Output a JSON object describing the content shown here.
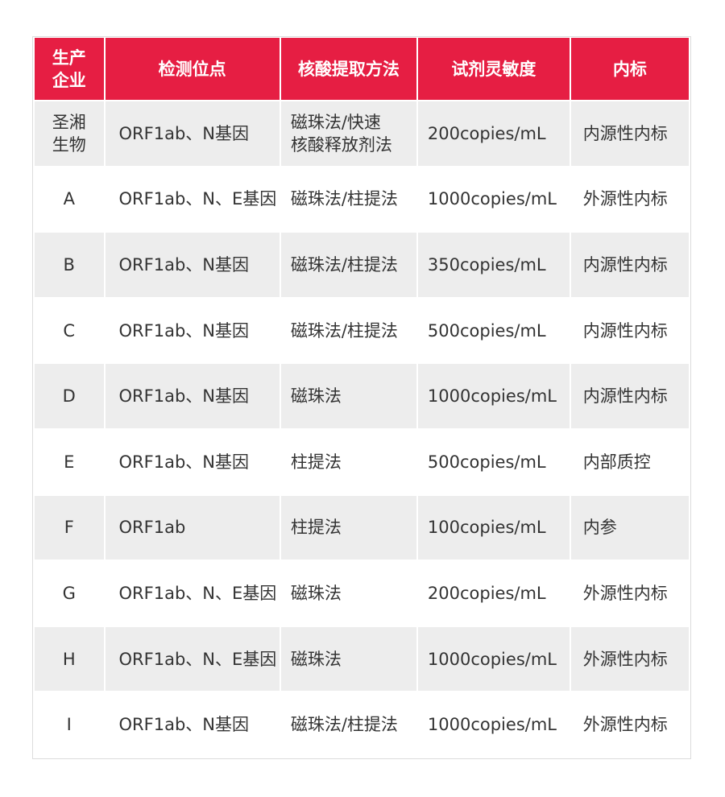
{
  "colors": {
    "header_bg": "#e61e43",
    "row_alt_bg": "#ededed"
  },
  "headers": [
    "生产\n企业",
    "检测位点",
    "核酸提取方法",
    "试剂灵敏度",
    "内标"
  ],
  "rows": [
    [
      "圣湘\n生物",
      "ORF1ab、N基因",
      "磁珠法/快速\n核酸释放剂法",
      "200copies/mL",
      "内源性内标"
    ],
    [
      "A",
      "ORF1ab、N、E基因",
      "磁珠法/柱提法",
      "1000copies/mL",
      "外源性内标"
    ],
    [
      "B",
      "ORF1ab、N基因",
      "磁珠法/柱提法",
      "350copies/mL",
      "内源性内标"
    ],
    [
      "C",
      "ORF1ab、N基因",
      "磁珠法/柱提法",
      "500copies/mL",
      "内源性内标"
    ],
    [
      "D",
      "ORF1ab、N基因",
      "磁珠法",
      "1000copies/mL",
      "内源性内标"
    ],
    [
      "E",
      "ORF1ab、N基因",
      "柱提法",
      "500copies/mL",
      "内部质控"
    ],
    [
      "F",
      "ORF1ab",
      "柱提法",
      "100copies/mL",
      "内参"
    ],
    [
      "G",
      "ORF1ab、N、E基因",
      "磁珠法",
      "200copies/mL",
      "外源性内标"
    ],
    [
      "H",
      "ORF1ab、N、E基因",
      "磁珠法",
      "1000copies/mL",
      "外源性内标"
    ],
    [
      "I",
      "ORF1ab、N基因",
      "磁珠法/柱提法",
      "1000copies/mL",
      "外源性内标"
    ]
  ]
}
